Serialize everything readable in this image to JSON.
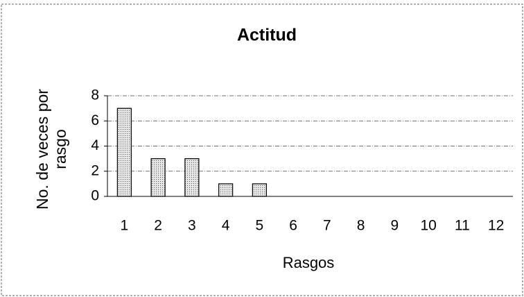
{
  "chart_data": {
    "type": "bar",
    "title": "Actitud",
    "x_label": "Rasgos",
    "y_label": "No. de veces por rasgo",
    "categories": [
      "1",
      "2",
      "3",
      "4",
      "5",
      "6",
      "7",
      "8",
      "9",
      "10",
      "11",
      "12"
    ],
    "values": [
      7,
      3,
      3,
      1,
      1,
      0,
      0,
      0,
      0,
      0,
      0,
      0
    ],
    "color": "#d9d9d9",
    "ylim": [
      0,
      8
    ],
    "yticks": [
      0,
      2,
      4,
      6,
      8
    ],
    "grid": true
  }
}
